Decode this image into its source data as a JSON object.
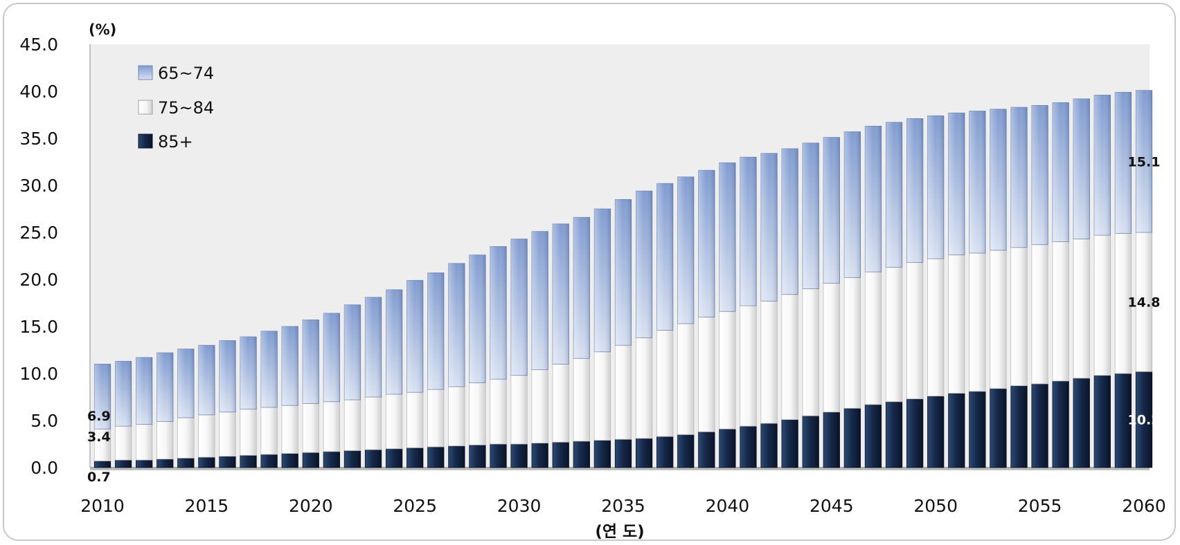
{
  "chart_data": {
    "type": "bar",
    "stacked": true,
    "y_unit_label": "(%)",
    "xlabel": "(연 도)",
    "ylim": [
      0,
      45
    ],
    "y_ticks": [
      "0.0",
      "5.0",
      "10.0",
      "15.0",
      "20.0",
      "25.0",
      "30.0",
      "35.0",
      "40.0",
      "45.0"
    ],
    "x_tick_labels": [
      "2010",
      "2015",
      "2020",
      "2025",
      "2030",
      "2035",
      "2040",
      "2045",
      "2050",
      "2055",
      "2060"
    ],
    "legend_position": "top-left",
    "grid": false,
    "categories": [
      2010,
      2011,
      2012,
      2013,
      2014,
      2015,
      2016,
      2017,
      2018,
      2019,
      2020,
      2021,
      2022,
      2023,
      2024,
      2025,
      2026,
      2027,
      2028,
      2029,
      2030,
      2031,
      2032,
      2033,
      2034,
      2035,
      2036,
      2037,
      2038,
      2039,
      2040,
      2041,
      2042,
      2043,
      2044,
      2045,
      2046,
      2047,
      2048,
      2049,
      2050,
      2051,
      2052,
      2053,
      2054,
      2055,
      2056,
      2057,
      2058,
      2059,
      2060
    ],
    "series": [
      {
        "name": "85+",
        "color": "#142846",
        "values": [
          0.7,
          0.8,
          0.8,
          0.9,
          1.0,
          1.1,
          1.2,
          1.3,
          1.4,
          1.5,
          1.6,
          1.7,
          1.8,
          1.9,
          2.0,
          2.1,
          2.2,
          2.3,
          2.4,
          2.5,
          2.5,
          2.6,
          2.7,
          2.8,
          2.9,
          3.0,
          3.1,
          3.3,
          3.5,
          3.8,
          4.1,
          4.4,
          4.7,
          5.1,
          5.5,
          5.9,
          6.3,
          6.7,
          7.0,
          7.3,
          7.6,
          7.9,
          8.1,
          8.4,
          8.7,
          8.9,
          9.2,
          9.5,
          9.8,
          10.0,
          10.2
        ]
      },
      {
        "name": "75~84",
        "color": "#f4f4f4",
        "values": [
          3.4,
          3.6,
          3.8,
          4.0,
          4.3,
          4.5,
          4.7,
          4.9,
          5.0,
          5.1,
          5.2,
          5.3,
          5.4,
          5.6,
          5.8,
          5.9,
          6.1,
          6.3,
          6.6,
          6.9,
          7.3,
          7.8,
          8.3,
          8.8,
          9.4,
          10.0,
          10.7,
          11.3,
          11.8,
          12.2,
          12.5,
          12.8,
          13.0,
          13.3,
          13.5,
          13.7,
          13.9,
          14.1,
          14.3,
          14.5,
          14.6,
          14.7,
          14.7,
          14.7,
          14.7,
          14.8,
          14.8,
          14.8,
          14.9,
          14.9,
          14.8
        ]
      },
      {
        "name": "65~74",
        "color": "#8aa4d4",
        "values": [
          6.9,
          6.9,
          7.1,
          7.3,
          7.3,
          7.4,
          7.6,
          7.7,
          8.1,
          8.4,
          8.9,
          9.4,
          10.1,
          10.6,
          11.1,
          11.9,
          12.4,
          13.1,
          13.6,
          14.1,
          14.5,
          14.7,
          14.9,
          15.0,
          15.2,
          15.5,
          15.6,
          15.6,
          15.6,
          15.6,
          15.8,
          15.8,
          15.7,
          15.5,
          15.5,
          15.5,
          15.5,
          15.5,
          15.4,
          15.3,
          15.2,
          15.1,
          15.1,
          15.0,
          14.9,
          14.8,
          14.8,
          14.9,
          14.9,
          15.0,
          15.1
        ]
      }
    ],
    "data_labels": [
      {
        "series": "65~74",
        "category": 2010,
        "text": "6.9"
      },
      {
        "series": "75~84",
        "category": 2010,
        "text": "3.4"
      },
      {
        "series": "85+",
        "category": 2010,
        "text": "0.7"
      },
      {
        "series": "65~74",
        "category": 2060,
        "text": "15.1"
      },
      {
        "series": "75~84",
        "category": 2060,
        "text": "14.8"
      },
      {
        "series": "85+",
        "category": 2060,
        "text": "10.2"
      }
    ]
  }
}
